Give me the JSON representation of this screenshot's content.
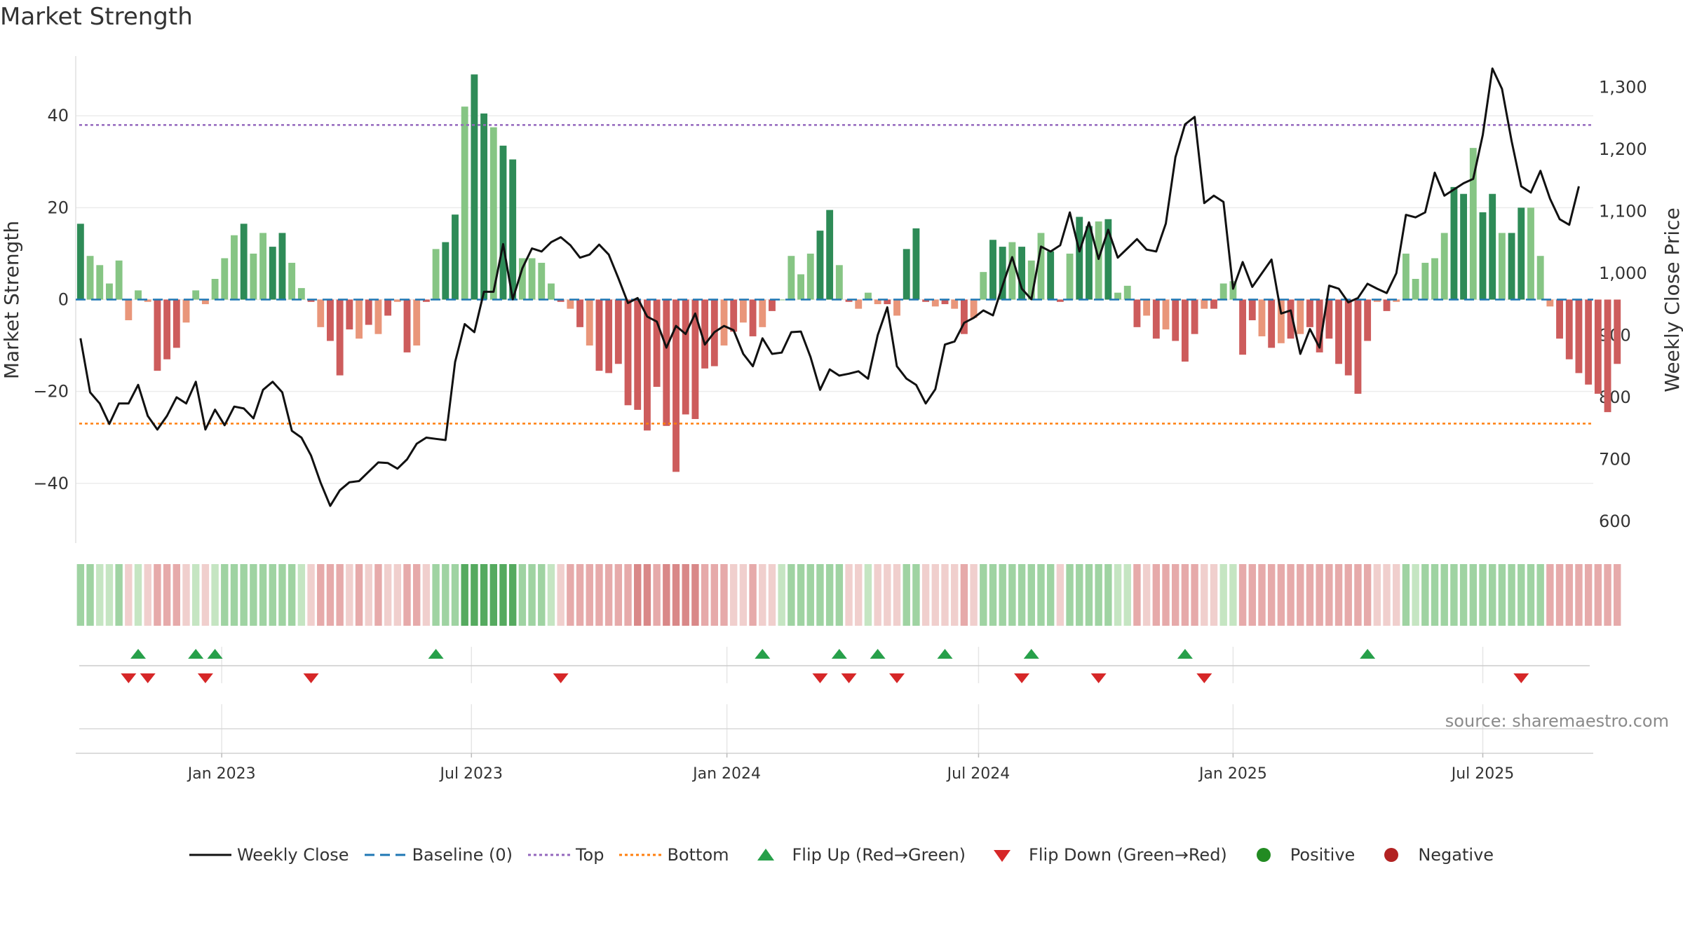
{
  "title": "Market Strength",
  "source": "source: sharemaestro.com",
  "colors": {
    "close_line": "#111111",
    "baseline": "#1f77b4",
    "top": "#9467bd",
    "bottom": "#ff7f0e",
    "flip_up": "#27a04a",
    "flip_down": "#d62728",
    "positive": "#228b22",
    "negative": "#b22222",
    "bar_pos_dark": "#2e8b57",
    "bar_pos_light": "#86c584",
    "bar_neg_dark": "#cd5c5c",
    "bar_neg_light": "#e9967a"
  },
  "legend": [
    {
      "key": "close",
      "label": "Weekly Close"
    },
    {
      "key": "baseline",
      "label": "Baseline (0)"
    },
    {
      "key": "top",
      "label": "Top"
    },
    {
      "key": "bottom",
      "label": "Bottom"
    },
    {
      "key": "flip_up",
      "label": "Flip Up (Red→Green)"
    },
    {
      "key": "flip_down",
      "label": "Flip Down (Green→Red)"
    },
    {
      "key": "positive",
      "label": "Positive"
    },
    {
      "key": "negative",
      "label": "Negative"
    }
  ],
  "chart_data": {
    "type": "bar",
    "title": "Market Strength",
    "ylabel": "Market Strength",
    "y2label": "Weekly Close Price",
    "ylim": [
      -53,
      53
    ],
    "y2lim": [
      565,
      1350
    ],
    "yticks": [
      -40,
      -20,
      0,
      20,
      40
    ],
    "ytick_labels": [
      "−40",
      "−20",
      "0",
      "20",
      "40"
    ],
    "y2ticks": [
      600,
      700,
      800,
      900,
      1000,
      1100,
      1200,
      1300
    ],
    "y2tick_labels": [
      "600",
      "700",
      "800",
      "900",
      "1,000",
      "1,100",
      "1,200",
      "1,300"
    ],
    "xlim_weeks": [
      0,
      158
    ],
    "xticks": [
      {
        "week": 15.2,
        "label": "Jan 2023"
      },
      {
        "week": 41.2,
        "label": "Jul 2023"
      },
      {
        "week": 67.8,
        "label": "Jan 2024"
      },
      {
        "week": 94.0,
        "label": "Jul 2024"
      },
      {
        "week": 120.5,
        "label": "Jan 2025"
      },
      {
        "week": 146.5,
        "label": "Jul 2025"
      }
    ],
    "top_level": 38,
    "bottom_level": -27,
    "baseline": 0,
    "strength": [
      16.5,
      9.5,
      7.5,
      3.5,
      8.5,
      -4.5,
      2.0,
      -0.5,
      -15.5,
      -13,
      -10.5,
      -5,
      2.0,
      -1,
      4.5,
      9,
      14,
      16.5,
      10,
      14.5,
      11.5,
      14.5,
      8,
      2.5,
      -0.5,
      -6,
      -9,
      -16.5,
      -6.5,
      -8.5,
      -5.5,
      -7.5,
      -3.5,
      -0.5,
      -11.5,
      -10,
      -0.5,
      11,
      12.5,
      18.5,
      42,
      49,
      40.5,
      37.5,
      33.5,
      30.5,
      9,
      9,
      8,
      3.5,
      -0.5,
      -2,
      -6,
      -10,
      -15.5,
      -16,
      -14,
      -23,
      -24,
      -28.5,
      -19,
      -27.5,
      -37.5,
      -25,
      -26,
      -15,
      -14.5,
      -10,
      -7,
      -5,
      -8,
      -6,
      -2.5,
      0,
      9.5,
      5.5,
      10,
      15,
      19.5,
      7.5,
      -0.5,
      -2,
      1.5,
      -1,
      -1,
      -3.5,
      11,
      15.5,
      -0.5,
      -1.5,
      -1,
      -2,
      -7.5,
      -4,
      6,
      13,
      11.5,
      12.5,
      11.5,
      8.5,
      14.5,
      10.5,
      -0.5,
      10,
      18,
      16,
      17,
      17.5,
      1.5,
      3,
      -6,
      -3.5,
      -8.5,
      -6.5,
      -9,
      -13.5,
      -7.5,
      -2,
      -2,
      3.5,
      4,
      -12,
      -4.5,
      -8,
      -10.5,
      -9.5,
      -8.5,
      -7.5,
      -6,
      -11.5,
      -8.5,
      -14,
      -16.5,
      -20.5,
      -9,
      -0.5,
      -2.5,
      -0.5,
      10,
      4.5,
      8,
      9,
      14.5,
      24.5,
      23,
      33,
      19,
      23,
      14.5,
      14.5,
      20,
      20,
      9.5,
      -1.5,
      -8.5,
      -13,
      -16,
      -18.5,
      -20.5,
      -24.5,
      -14
    ],
    "close": [
      895,
      808,
      790,
      757,
      790,
      790,
      820,
      770,
      748,
      770,
      800,
      790,
      825,
      748,
      780,
      755,
      785,
      782,
      766,
      812,
      825,
      808,
      746,
      735,
      706,
      662,
      625,
      650,
      663,
      665,
      680,
      695,
      694,
      685,
      700,
      725,
      735,
      733,
      731,
      857,
      918,
      905,
      970,
      970,
      1047,
      958,
      1008,
      1040,
      1035,
      1050,
      1058,
      1045,
      1025,
      1030,
      1046,
      1030,
      992,
      952,
      960,
      930,
      922,
      880,
      915,
      902,
      935,
      885,
      905,
      915,
      908,
      870,
      850,
      895,
      870,
      872,
      905,
      906,
      865,
      812,
      845,
      835,
      838,
      842,
      830,
      900,
      945,
      850,
      830,
      820,
      790,
      813,
      885,
      890,
      920,
      928,
      940,
      932,
      980,
      1026,
      975,
      958,
      1043,
      1035,
      1045,
      1098,
      1035,
      1082,
      1023,
      1070,
      1025,
      1040,
      1055,
      1038,
      1035,
      1080,
      1187,
      1240,
      1252,
      1113,
      1125,
      1115,
      975,
      1018,
      978,
      1000,
      1022,
      935,
      940,
      870,
      910,
      880,
      980,
      975,
      953,
      960,
      983,
      975,
      968,
      1000,
      1094,
      1090,
      1098,
      1162,
      1125,
      1135,
      1145,
      1152,
      1223,
      1330,
      1297,
      1213,
      1140,
      1130,
      1165,
      1120,
      1087,
      1078,
      1140
    ],
    "heat_levels": [
      2,
      2,
      1,
      1,
      2,
      -1,
      1,
      -1,
      -2,
      -2,
      -2,
      -1,
      1,
      -1,
      1,
      2,
      2,
      2,
      2,
      2,
      2,
      2,
      2,
      1,
      -1,
      -2,
      -2,
      -2,
      -1,
      -2,
      -1,
      -2,
      -1,
      -1,
      -2,
      -2,
      -1,
      2,
      2,
      2,
      3,
      3,
      3,
      3,
      3,
      3,
      2,
      2,
      2,
      1,
      -1,
      -2,
      -2,
      -2,
      -2,
      -2,
      -2,
      -2,
      -3,
      -3,
      -2,
      -3,
      -3,
      -3,
      -3,
      -2,
      -2,
      -2,
      -1,
      -1,
      -2,
      -1,
      -1,
      1,
      2,
      2,
      2,
      2,
      2,
      2,
      -1,
      -1,
      1,
      -1,
      -1,
      -1,
      2,
      2,
      -1,
      -1,
      -1,
      -1,
      -2,
      -1,
      2,
      2,
      2,
      2,
      2,
      2,
      2,
      2,
      -1,
      2,
      2,
      2,
      2,
      2,
      1,
      1,
      -2,
      -1,
      -2,
      -2,
      -2,
      -2,
      -2,
      -1,
      -1,
      1,
      1,
      -2,
      -2,
      -2,
      -2,
      -2,
      -2,
      -2,
      -2,
      -2,
      -2,
      -2,
      -2,
      -2,
      -2,
      -1,
      -1,
      -1,
      2,
      1,
      2,
      2,
      2,
      2,
      2,
      2,
      2,
      2,
      2,
      2,
      2,
      2,
      2,
      -2,
      -2,
      -2,
      -2,
      -2,
      -2,
      -2,
      -2
    ],
    "flips_up_weeks": [
      6,
      12,
      14,
      37,
      71,
      79,
      83,
      90,
      99,
      115,
      134
    ],
    "flips_down_weeks": [
      5,
      7,
      13,
      24,
      50,
      77,
      80,
      85,
      98,
      106,
      117,
      150
    ],
    "minor_xticks_weeks": [
      15.2,
      41.2,
      67.8,
      94.0,
      120.5,
      146.5
    ]
  }
}
